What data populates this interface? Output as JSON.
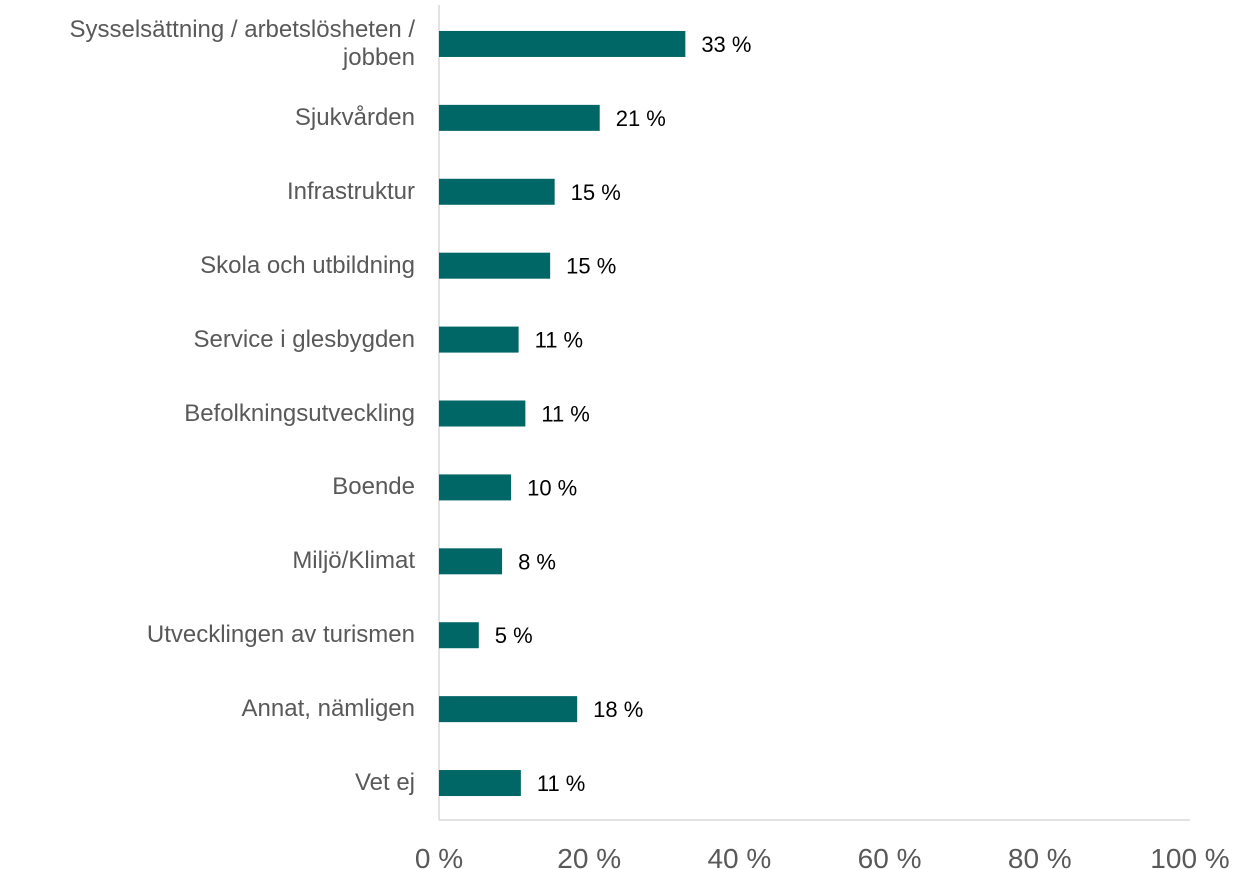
{
  "chart_data": {
    "type": "barh",
    "categories": [
      "Sysselsättning / arbetslösheten / jobben",
      "Sjukvården",
      "Infrastruktur",
      "Skola och utbildning",
      "Service i glesbygden",
      "Befolkningsutveckling",
      "Boende",
      "Miljö/Klimat",
      "Utvecklingen av turismen",
      "Annat, nämligen",
      "Vet ej"
    ],
    "values": [
      32.8,
      21.4,
      15.4,
      14.8,
      10.6,
      11.5,
      9.6,
      8.4,
      5.3,
      18.4,
      10.9
    ],
    "value_labels": [
      "33 %",
      "21 %",
      "15 %",
      "15 %",
      "11 %",
      "11 %",
      "10 %",
      "8 %",
      "5 %",
      "18 %",
      "11 %"
    ],
    "color": "#006666",
    "xlim": [
      0,
      100
    ],
    "xticks": [
      {
        "value": 0,
        "label": "0 %"
      },
      {
        "value": 20,
        "label": "20 %"
      },
      {
        "value": 40,
        "label": "40 %"
      },
      {
        "value": 60,
        "label": "60 %"
      },
      {
        "value": 80,
        "label": "80 %"
      },
      {
        "value": 100,
        "label": "100 %"
      }
    ]
  }
}
